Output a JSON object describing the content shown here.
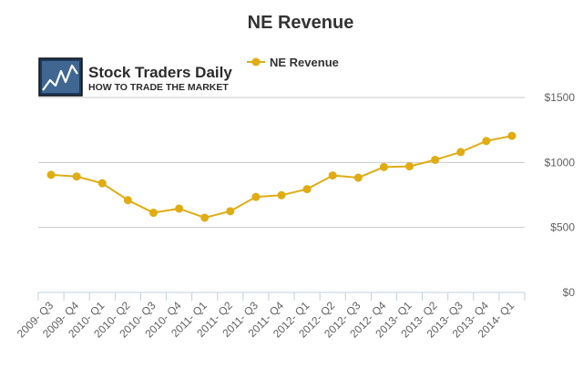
{
  "logo": {
    "name": "Stock Traders Daily",
    "tagline": "HOW TO TRADE THE MARKET"
  },
  "chart_data": {
    "type": "line",
    "title": "NE Revenue",
    "xlabel": "",
    "ylabel": "",
    "legend_position": "top-center",
    "grid": true,
    "color": "#e0ac12",
    "categories": [
      "2009- Q3",
      "2009- Q4",
      "2010- Q1",
      "2010- Q2",
      "2010- Q3",
      "2010- Q4",
      "2011- Q1",
      "2011- Q2",
      "2011- Q3",
      "2011- Q4",
      "2012- Q1",
      "2012- Q2",
      "2012- Q3",
      "2012- Q4",
      "2013- Q1",
      "2013- Q2",
      "2013- Q3",
      "2013- Q4",
      "2014- Q1"
    ],
    "series": [
      {
        "name": "NE Revenue",
        "values": [
          905,
          892,
          840,
          710,
          613,
          645,
          575,
          625,
          735,
          748,
          795,
          900,
          883,
          965,
          970,
          1020,
          1080,
          1165,
          1205
        ]
      }
    ],
    "ylim": [
      0,
      1500
    ],
    "yticks": [
      0,
      500,
      1000,
      1500
    ],
    "ytick_labels": [
      "$0",
      "$500",
      "$1000",
      "$1500"
    ]
  }
}
